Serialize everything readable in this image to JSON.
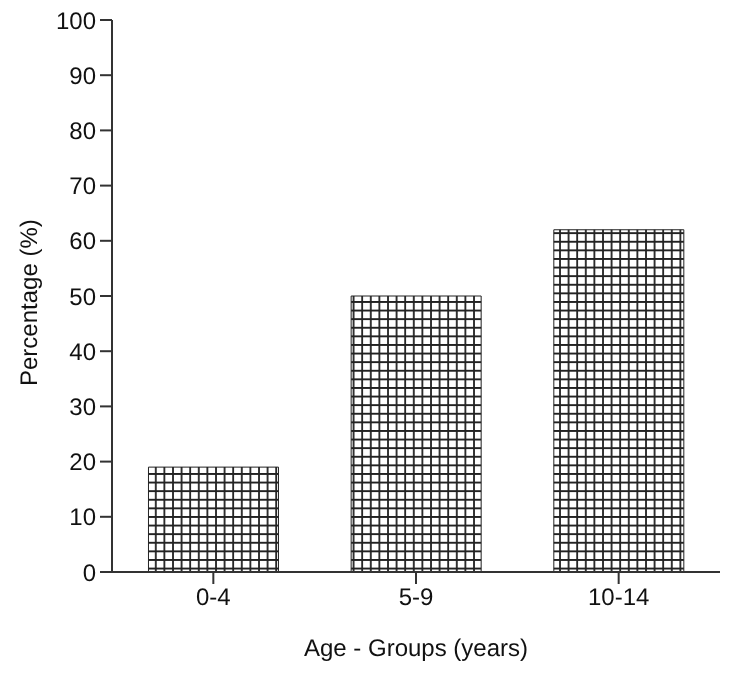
{
  "chart_data": {
    "type": "bar",
    "xlabel": "Age - Groups (years)",
    "ylabel": "Percentage (%)",
    "categories": [
      "0-4",
      "5-9",
      "10-14"
    ],
    "values": [
      19,
      50,
      62
    ],
    "color": "#222222",
    "ylim": [
      0,
      100
    ],
    "yticks": [
      0,
      10,
      20,
      30,
      40,
      50,
      60,
      70,
      80,
      90,
      100
    ],
    "grid": false,
    "legend": false
  }
}
